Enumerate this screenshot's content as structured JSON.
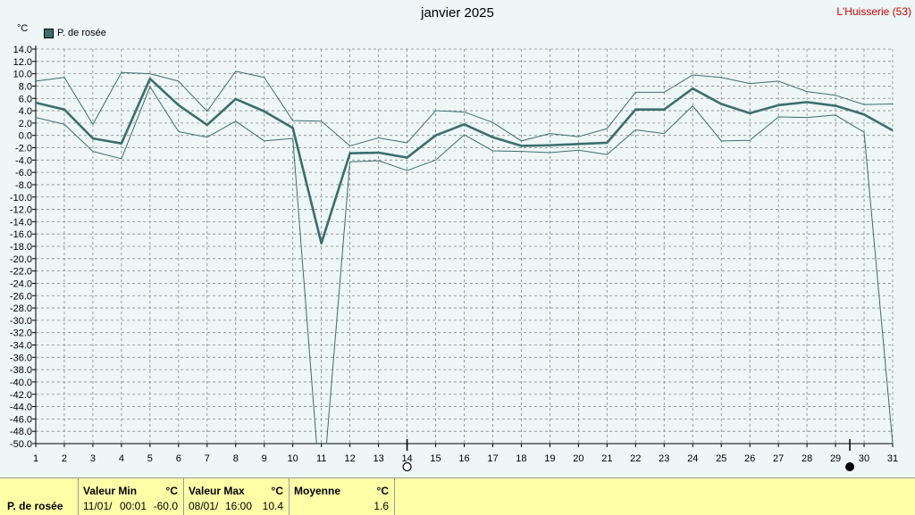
{
  "title": "janvier 2025",
  "station": "L'Huisserie (53)",
  "unit": "°C",
  "legend_label": "P. de rosée",
  "colors": {
    "series": "#3b6e6e",
    "grid": "#888888",
    "background": "#eef6f6",
    "footer": "#ffffa8"
  },
  "chart_data": {
    "type": "line",
    "title": "janvier 2025",
    "ylabel": "°C",
    "ylim": [
      -50,
      14
    ],
    "y_step": 2,
    "xlim": [
      1,
      31
    ],
    "categories": [
      "1",
      "2",
      "3",
      "4",
      "5",
      "6",
      "7",
      "8",
      "9",
      "10",
      "11",
      "12",
      "13",
      "14",
      "15",
      "16",
      "17",
      "18",
      "19",
      "20",
      "21",
      "22",
      "23",
      "24",
      "25",
      "26",
      "27",
      "28",
      "29",
      "30",
      "31"
    ],
    "grid": true,
    "legend_position": "top-left",
    "markers": [
      {
        "day": 14,
        "symbol": "open-circle"
      },
      {
        "day": 29.5,
        "symbol": "filled-circle"
      }
    ],
    "series": [
      {
        "name": "P. de rosée",
        "role": "mean",
        "values": [
          5.3,
          4.2,
          -0.5,
          -1.3,
          9.2,
          4.9,
          1.7,
          5.9,
          3.9,
          1.2,
          -17.5,
          -2.9,
          -2.8,
          -3.6,
          0.0,
          1.8,
          -0.3,
          -1.7,
          -1.6,
          -1.4,
          -1.2,
          4.2,
          4.2,
          7.6,
          5.1,
          3.6,
          4.9,
          5.4,
          4.8,
          3.4,
          0.8
        ]
      },
      {
        "role": "max",
        "values": [
          8.8,
          9.4,
          1.8,
          10.2,
          10.0,
          8.8,
          3.9,
          10.4,
          9.4,
          2.4,
          2.3,
          -1.7,
          -0.4,
          -1.2,
          4.0,
          3.8,
          2.1,
          -0.9,
          0.3,
          -0.2,
          1.1,
          7.0,
          7.0,
          9.8,
          9.4,
          8.4,
          8.8,
          7.1,
          6.5,
          5.0,
          5.1
        ]
      },
      {
        "role": "min",
        "values": [
          2.9,
          1.8,
          -2.6,
          -3.8,
          7.9,
          0.6,
          -0.3,
          2.3,
          -0.9,
          -0.5,
          -60.0,
          -4.3,
          -4.1,
          -5.7,
          -4.0,
          0.1,
          -2.5,
          -2.6,
          -2.8,
          -2.4,
          -3.1,
          0.9,
          0.3,
          4.8,
          -0.9,
          -0.8,
          3.0,
          2.9,
          3.3,
          0.5,
          -50.0
        ]
      }
    ]
  },
  "stats": {
    "row_label": "P. de rosée",
    "min_header": "Valeur Min",
    "min_unit": "°C",
    "min_date": "11/01/",
    "min_time": "00:01",
    "min_value": "-60.0",
    "max_header": "Valeur Max",
    "max_unit": "°C",
    "max_date": "08/01/",
    "max_time": "16:00",
    "max_value": "10.4",
    "mean_header": "Moyenne",
    "mean_unit": "°C",
    "mean_value": "1.6"
  }
}
